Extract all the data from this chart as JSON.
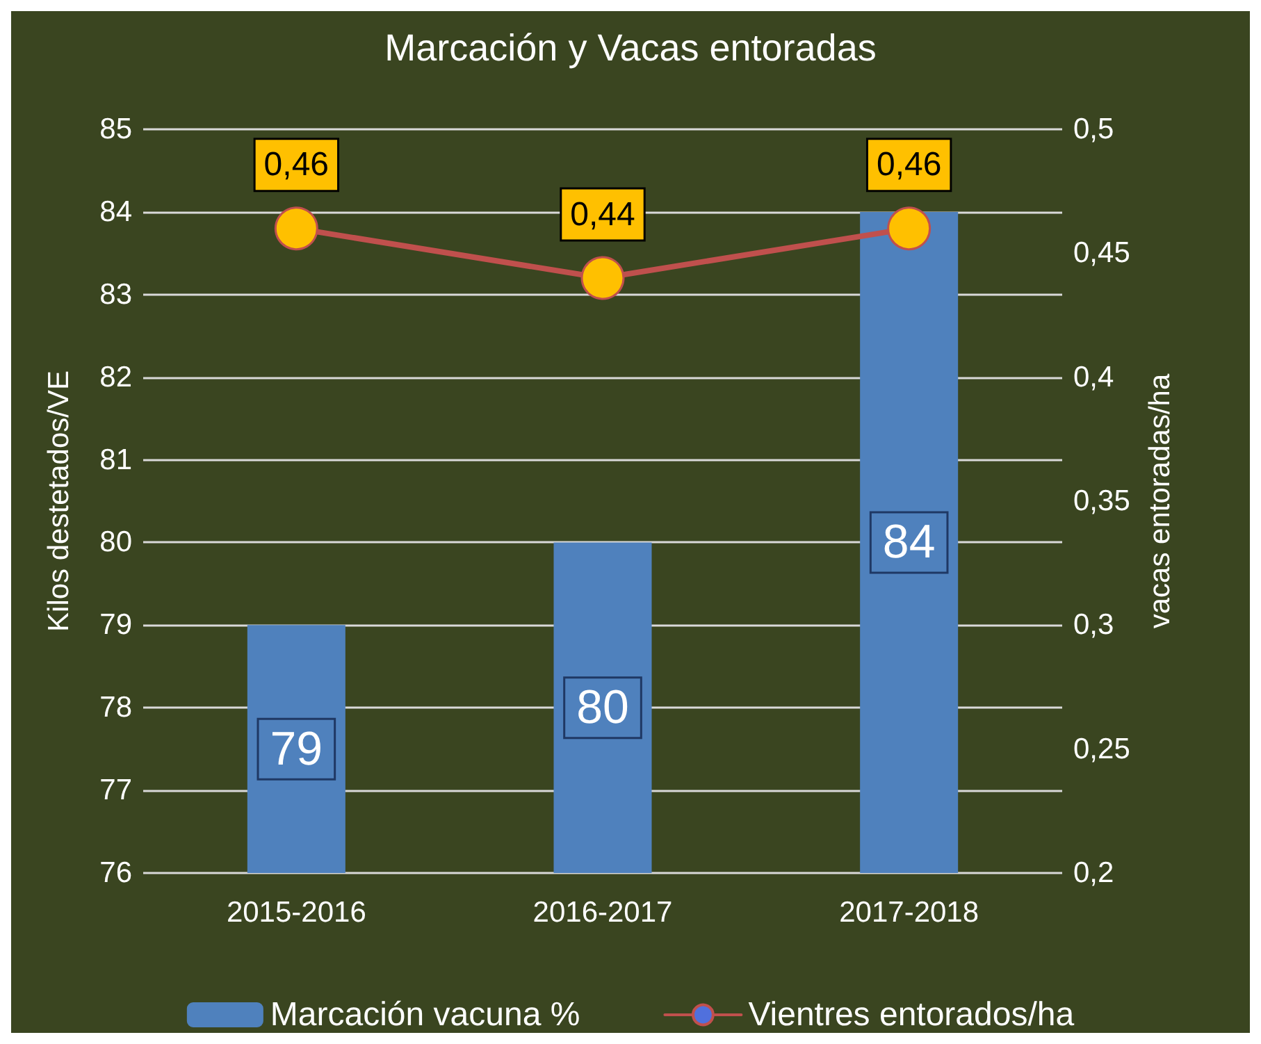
{
  "chart_data": {
    "type": "bar",
    "title": "Marcación y Vacas entoradas",
    "ylabel": "Kilos destetados/VE",
    "y2label": "vacas entoradas/ha",
    "categories": [
      "2015-2016",
      "2016-2017",
      "2017-2018"
    ],
    "series": [
      {
        "name": "Marcación vacuna %",
        "color": "#4f81bd",
        "values": [
          79,
          80,
          84
        ],
        "value_labels": [
          "79",
          "80",
          "84"
        ]
      },
      {
        "name": "Vientres entorados/ha",
        "type": "line",
        "axis": "y2",
        "color": "#c0504d",
        "colors": [
          "#ffc000",
          "#ffc000",
          "#ffc000"
        ],
        "values": [
          0.46,
          0.44,
          0.46
        ],
        "value_labels": [
          "0,46",
          "0,44",
          "0,46"
        ]
      }
    ],
    "ylim": [
      76,
      85
    ],
    "yticks": [
      76,
      77,
      78,
      79,
      80,
      81,
      82,
      83,
      84,
      85
    ],
    "y2lim": [
      0.2,
      0.5
    ],
    "y2ticks": [
      {
        "value": 0.2,
        "label": "0,2"
      },
      {
        "value": 0.25,
        "label": "0,25"
      },
      {
        "value": 0.3,
        "label": "0,3"
      },
      {
        "value": 0.35,
        "label": "0,35"
      },
      {
        "value": 0.4,
        "label": "0,4"
      },
      {
        "value": 0.45,
        "label": "0,45"
      },
      {
        "value": 0.5,
        "label": "0,5"
      }
    ],
    "grid": "y",
    "legend": "bottom",
    "marker": "circle",
    "line_style": "solid"
  }
}
